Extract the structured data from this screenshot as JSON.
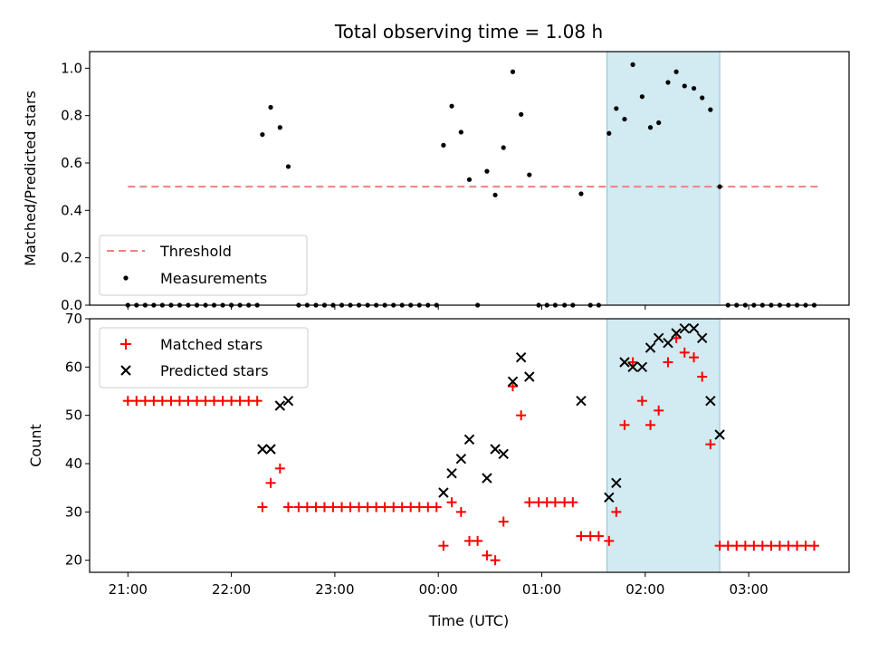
{
  "title": "Total observing time = 1.08 h",
  "colors": {
    "threshold": "#f08080",
    "measurements": "#000000",
    "matched": "#ff0000",
    "predicted": "#000000",
    "span": "#add8e6"
  },
  "chart_data": [
    {
      "type": "scatter",
      "ylabel": "Matched/Predicted stars",
      "xlabel": "",
      "x_unit": "hours from 21:00 UTC",
      "xlim": [
        -0.37,
        6.97
      ],
      "ylim": [
        0.0,
        1.07
      ],
      "yticks": [
        "0.0",
        "0.2",
        "0.4",
        "0.6",
        "0.8",
        "1.0"
      ],
      "yticks_values": [
        0.0,
        0.2,
        0.4,
        0.6,
        0.8,
        1.0
      ],
      "highlight_span": [
        4.63,
        5.72
      ],
      "legend": {
        "position": "lower-left",
        "entries": [
          "Threshold",
          "Measurements"
        ]
      },
      "threshold": {
        "name": "Threshold",
        "value": 0.5,
        "x_range": [
          0.0,
          6.67
        ]
      },
      "series": [
        {
          "name": "Measurements",
          "marker": "dot",
          "points": [
            [
              0.0,
              0
            ],
            [
              0.083,
              0
            ],
            [
              0.167,
              0
            ],
            [
              0.25,
              0
            ],
            [
              0.333,
              0
            ],
            [
              0.417,
              0
            ],
            [
              0.5,
              0
            ],
            [
              0.583,
              0
            ],
            [
              0.667,
              0
            ],
            [
              0.75,
              0
            ],
            [
              0.833,
              0
            ],
            [
              0.917,
              0
            ],
            [
              1.0,
              0
            ],
            [
              1.083,
              0
            ],
            [
              1.167,
              0
            ],
            [
              1.25,
              0
            ],
            [
              1.3,
              0.72
            ],
            [
              1.38,
              0.835
            ],
            [
              1.47,
              0.75
            ],
            [
              1.55,
              0.585
            ],
            [
              1.65,
              0
            ],
            [
              1.733,
              0
            ],
            [
              1.817,
              0
            ],
            [
              1.9,
              0
            ],
            [
              1.983,
              0
            ],
            [
              2.067,
              0
            ],
            [
              2.15,
              0
            ],
            [
              2.233,
              0
            ],
            [
              2.317,
              0
            ],
            [
              2.4,
              0
            ],
            [
              2.483,
              0
            ],
            [
              2.567,
              0
            ],
            [
              2.65,
              0
            ],
            [
              2.733,
              0
            ],
            [
              2.817,
              0
            ],
            [
              2.9,
              0
            ],
            [
              2.983,
              0
            ],
            [
              3.05,
              0.675
            ],
            [
              3.13,
              0.84
            ],
            [
              3.22,
              0.73
            ],
            [
              3.3,
              0.53
            ],
            [
              3.38,
              0
            ],
            [
              3.47,
              0.565
            ],
            [
              3.55,
              0.465
            ],
            [
              3.63,
              0.665
            ],
            [
              3.72,
              0.985
            ],
            [
              3.8,
              0.805
            ],
            [
              3.88,
              0.55
            ],
            [
              3.97,
              0
            ],
            [
              4.05,
              0
            ],
            [
              4.13,
              0
            ],
            [
              4.22,
              0
            ],
            [
              4.3,
              0
            ],
            [
              4.38,
              0.47
            ],
            [
              4.47,
              0
            ],
            [
              4.55,
              0
            ],
            [
              4.65,
              0.725
            ],
            [
              4.72,
              0.83
            ],
            [
              4.8,
              0.785
            ],
            [
              4.88,
              1.015
            ],
            [
              4.97,
              0.88
            ],
            [
              5.05,
              0.75
            ],
            [
              5.13,
              0.77
            ],
            [
              5.22,
              0.94
            ],
            [
              5.3,
              0.985
            ],
            [
              5.38,
              0.925
            ],
            [
              5.47,
              0.915
            ],
            [
              5.55,
              0.875
            ],
            [
              5.63,
              0.825
            ],
            [
              5.72,
              0.5
            ],
            [
              5.8,
              0
            ],
            [
              5.883,
              0
            ],
            [
              5.967,
              0
            ],
            [
              6.05,
              0
            ],
            [
              6.133,
              0
            ],
            [
              6.217,
              0
            ],
            [
              6.3,
              0
            ],
            [
              6.383,
              0
            ],
            [
              6.467,
              0
            ],
            [
              6.55,
              0
            ],
            [
              6.633,
              0
            ]
          ]
        }
      ]
    },
    {
      "type": "scatter",
      "ylabel": "Count",
      "xlabel": "Time (UTC)",
      "x_unit": "hours from 21:00 UTC",
      "xlim": [
        -0.37,
        6.97
      ],
      "ylim": [
        17.5,
        70.0
      ],
      "yticks": [
        "20",
        "30",
        "40",
        "50",
        "60",
        "70"
      ],
      "yticks_values": [
        20,
        30,
        40,
        50,
        60,
        70
      ],
      "xticks": [
        "21:00",
        "22:00",
        "23:00",
        "00:00",
        "01:00",
        "02:00",
        "03:00"
      ],
      "xticks_values": [
        0,
        1,
        2,
        3,
        4,
        5,
        6
      ],
      "highlight_span": [
        4.63,
        5.72
      ],
      "legend": {
        "position": "upper-left",
        "entries": [
          "Matched stars",
          "Predicted stars"
        ]
      },
      "series": [
        {
          "name": "Matched stars",
          "marker": "plus",
          "points": [
            [
              0.0,
              53
            ],
            [
              0.083,
              53
            ],
            [
              0.167,
              53
            ],
            [
              0.25,
              53
            ],
            [
              0.333,
              53
            ],
            [
              0.417,
              53
            ],
            [
              0.5,
              53
            ],
            [
              0.583,
              53
            ],
            [
              0.667,
              53
            ],
            [
              0.75,
              53
            ],
            [
              0.833,
              53
            ],
            [
              0.917,
              53
            ],
            [
              1.0,
              53
            ],
            [
              1.083,
              53
            ],
            [
              1.167,
              53
            ],
            [
              1.25,
              53
            ],
            [
              1.3,
              31
            ],
            [
              1.38,
              36
            ],
            [
              1.47,
              39
            ],
            [
              1.55,
              31
            ],
            [
              1.65,
              31
            ],
            [
              1.733,
              31
            ],
            [
              1.817,
              31
            ],
            [
              1.9,
              31
            ],
            [
              1.983,
              31
            ],
            [
              2.067,
              31
            ],
            [
              2.15,
              31
            ],
            [
              2.233,
              31
            ],
            [
              2.317,
              31
            ],
            [
              2.4,
              31
            ],
            [
              2.483,
              31
            ],
            [
              2.567,
              31
            ],
            [
              2.65,
              31
            ],
            [
              2.733,
              31
            ],
            [
              2.817,
              31
            ],
            [
              2.9,
              31
            ],
            [
              2.983,
              31
            ],
            [
              3.05,
              23
            ],
            [
              3.13,
              32
            ],
            [
              3.22,
              30
            ],
            [
              3.3,
              24
            ],
            [
              3.38,
              24
            ],
            [
              3.47,
              21
            ],
            [
              3.55,
              20
            ],
            [
              3.63,
              28
            ],
            [
              3.72,
              56
            ],
            [
              3.8,
              50
            ],
            [
              3.88,
              32
            ],
            [
              3.97,
              32
            ],
            [
              4.05,
              32
            ],
            [
              4.13,
              32
            ],
            [
              4.22,
              32
            ],
            [
              4.3,
              32
            ],
            [
              4.38,
              25
            ],
            [
              4.47,
              25
            ],
            [
              4.55,
              25
            ],
            [
              4.65,
              24
            ],
            [
              4.72,
              30
            ],
            [
              4.8,
              48
            ],
            [
              4.88,
              61
            ],
            [
              4.97,
              53
            ],
            [
              5.05,
              48
            ],
            [
              5.13,
              51
            ],
            [
              5.22,
              61
            ],
            [
              5.3,
              66
            ],
            [
              5.38,
              63
            ],
            [
              5.47,
              62
            ],
            [
              5.55,
              58
            ],
            [
              5.63,
              44
            ],
            [
              5.72,
              23
            ],
            [
              5.8,
              23
            ],
            [
              5.883,
              23
            ],
            [
              5.967,
              23
            ],
            [
              6.05,
              23
            ],
            [
              6.133,
              23
            ],
            [
              6.217,
              23
            ],
            [
              6.3,
              23
            ],
            [
              6.383,
              23
            ],
            [
              6.467,
              23
            ],
            [
              6.55,
              23
            ],
            [
              6.633,
              23
            ]
          ]
        },
        {
          "name": "Predicted stars",
          "marker": "x",
          "points": [
            [
              1.3,
              43
            ],
            [
              1.38,
              43
            ],
            [
              1.47,
              52
            ],
            [
              1.55,
              53
            ],
            [
              3.05,
              34
            ],
            [
              3.13,
              38
            ],
            [
              3.22,
              41
            ],
            [
              3.3,
              45
            ],
            [
              3.47,
              37
            ],
            [
              3.55,
              43
            ],
            [
              3.63,
              42
            ],
            [
              3.72,
              57
            ],
            [
              3.8,
              62
            ],
            [
              3.88,
              58
            ],
            [
              4.38,
              53
            ],
            [
              4.65,
              33
            ],
            [
              4.72,
              36
            ],
            [
              4.8,
              61
            ],
            [
              4.88,
              60
            ],
            [
              4.97,
              60
            ],
            [
              5.05,
              64
            ],
            [
              5.13,
              66
            ],
            [
              5.22,
              65
            ],
            [
              5.3,
              67
            ],
            [
              5.38,
              68
            ],
            [
              5.47,
              68
            ],
            [
              5.55,
              66
            ],
            [
              5.63,
              53
            ],
            [
              5.72,
              46
            ]
          ]
        }
      ]
    }
  ]
}
